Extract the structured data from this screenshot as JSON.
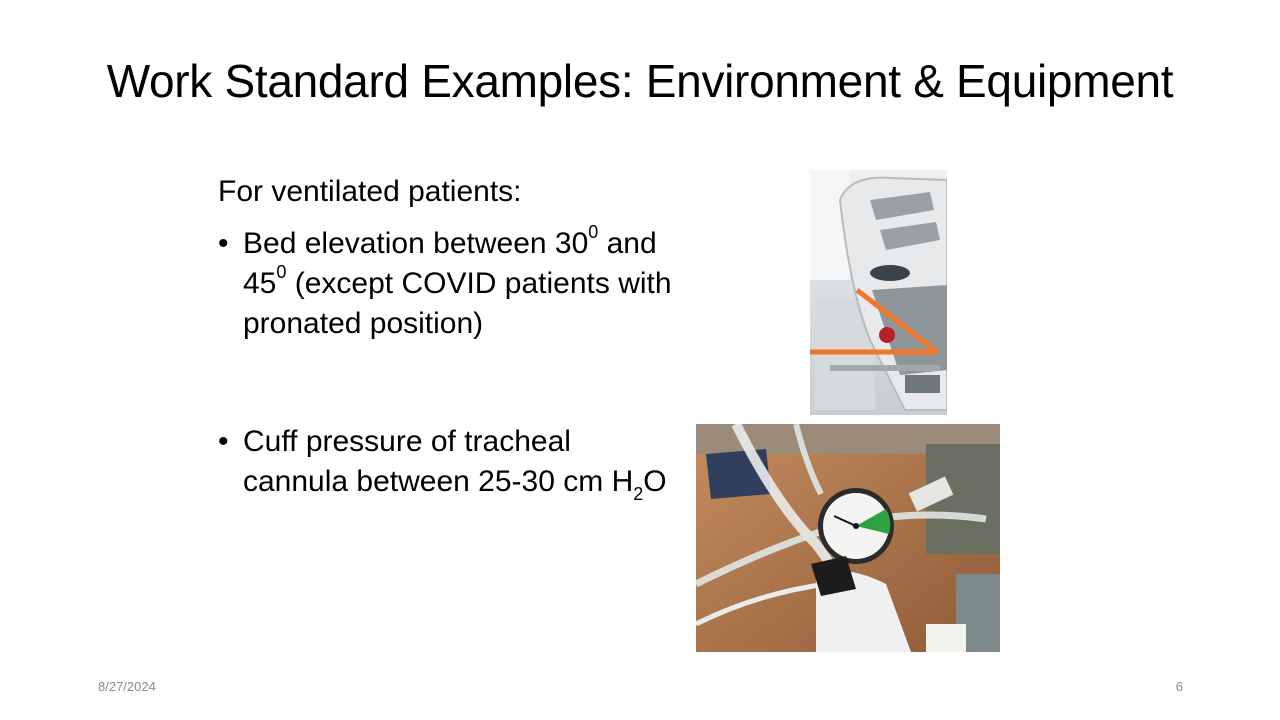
{
  "slide": {
    "title": "Work Standard Examples: Environment & Equipment",
    "intro": "For ventilated patients:",
    "bullet1": {
      "part1": "Bed elevation between 30",
      "deg1": "0",
      "part2": " and 45",
      "deg2": "0",
      "part3": " (except COVID patients with pronated position)"
    },
    "bullet2": {
      "part1": "Cuff pressure of tracheal cannula between 25-30 cm H",
      "sub": "2",
      "part2": "O"
    }
  },
  "footer": {
    "date": "8/27/2024",
    "page": "6"
  },
  "colors": {
    "angle_marker": "#f0762e",
    "gauge_needle": "#2ea043"
  }
}
